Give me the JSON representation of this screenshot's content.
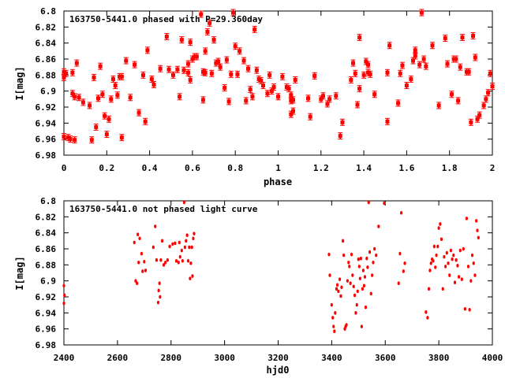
{
  "chart_data": [
    {
      "type": "scatter",
      "title": "163750-5441.0 phased with P=29.360day",
      "xlabel": "phase",
      "ylabel": "I[mag]",
      "xlim": [
        0,
        2
      ],
      "ylim": [
        6.98,
        6.8
      ],
      "y_inverted": true,
      "x_ticks": [
        0,
        0.2,
        0.4,
        0.6,
        0.8,
        1,
        1.2,
        1.4,
        1.6,
        1.8,
        2
      ],
      "x_tick_labels": [
        "0",
        "0.2",
        "0.4",
        "0.6",
        "0.8",
        "1",
        "1.2",
        "1.4",
        "1.6",
        "1.8",
        "2"
      ],
      "y_ticks": [
        6.8,
        6.82,
        6.84,
        6.86,
        6.88,
        6.9,
        6.92,
        6.94,
        6.96,
        6.98
      ],
      "y_tick_labels": [
        "6.8",
        "6.82",
        "6.84",
        "6.86",
        "6.88",
        "6.9",
        "6.92",
        "6.94",
        "6.96",
        "6.98"
      ],
      "grid": false,
      "marker_color": "#ff0000",
      "marker": "errorbar-dot",
      "points": [
        [
          0.0,
          6.876
        ],
        [
          0.0,
          6.883
        ],
        [
          0.0,
          6.957
        ],
        [
          0.01,
          6.878
        ],
        [
          0.02,
          6.958
        ],
        [
          0.03,
          6.96
        ],
        [
          0.04,
          6.877
        ],
        [
          0.04,
          6.903
        ],
        [
          0.05,
          6.961
        ],
        [
          0.05,
          6.907
        ],
        [
          0.06,
          6.865
        ],
        [
          0.07,
          6.908
        ],
        [
          0.09,
          6.914
        ],
        [
          0.12,
          6.918
        ],
        [
          0.13,
          6.961
        ],
        [
          0.14,
          6.883
        ],
        [
          0.15,
          6.945
        ],
        [
          0.16,
          6.909
        ],
        [
          0.17,
          6.869
        ],
        [
          0.18,
          6.904
        ],
        [
          0.19,
          6.931
        ],
        [
          0.2,
          6.954
        ],
        [
          0.21,
          6.935
        ],
        [
          0.22,
          6.91
        ],
        [
          0.23,
          6.885
        ],
        [
          0.24,
          6.893
        ],
        [
          0.25,
          6.905
        ],
        [
          0.26,
          6.882
        ],
        [
          0.27,
          6.958
        ],
        [
          0.27,
          6.882
        ],
        [
          0.29,
          6.862
        ],
        [
          0.31,
          6.908
        ],
        [
          0.33,
          6.867
        ],
        [
          0.35,
          6.927
        ],
        [
          0.37,
          6.88
        ],
        [
          0.38,
          6.938
        ],
        [
          0.39,
          6.849
        ],
        [
          0.41,
          6.885
        ],
        [
          0.42,
          6.892
        ],
        [
          0.45,
          6.872
        ],
        [
          0.48,
          6.832
        ],
        [
          0.49,
          6.873
        ],
        [
          0.51,
          6.88
        ],
        [
          0.53,
          6.873
        ],
        [
          0.54,
          6.907
        ],
        [
          0.55,
          6.836
        ],
        [
          0.56,
          6.874
        ],
        [
          0.58,
          6.877
        ],
        [
          0.58,
          6.866
        ],
        [
          0.59,
          6.886
        ],
        [
          0.59,
          6.839
        ],
        [
          0.6,
          6.86
        ],
        [
          0.61,
          6.857
        ],
        [
          0.62,
          6.857
        ],
        [
          0.64,
          6.804
        ],
        [
          0.65,
          6.911
        ],
        [
          0.65,
          6.876
        ],
        [
          0.66,
          6.85
        ],
        [
          0.66,
          6.877
        ],
        [
          0.67,
          6.826
        ],
        [
          0.68,
          6.815
        ],
        [
          0.69,
          6.878
        ],
        [
          0.7,
          6.836
        ],
        [
          0.71,
          6.865
        ],
        [
          0.72,
          6.863
        ],
        [
          0.73,
          6.87
        ],
        [
          0.75,
          6.896
        ],
        [
          0.76,
          6.861
        ],
        [
          0.77,
          6.913
        ],
        [
          0.78,
          6.879
        ],
        [
          0.79,
          6.802
        ],
        [
          0.8,
          6.844
        ],
        [
          0.81,
          6.879
        ],
        [
          0.82,
          6.85
        ],
        [
          0.84,
          6.862
        ],
        [
          0.85,
          6.912
        ],
        [
          0.86,
          6.872
        ],
        [
          0.87,
          6.898
        ],
        [
          0.88,
          6.907
        ],
        [
          0.89,
          6.823
        ],
        [
          0.9,
          6.874
        ],
        [
          0.91,
          6.885
        ],
        [
          0.92,
          6.887
        ],
        [
          0.93,
          6.893
        ],
        [
          0.95,
          6.903
        ],
        [
          0.96,
          6.88
        ],
        [
          0.97,
          6.9
        ],
        [
          0.98,
          6.895
        ],
        [
          1.0,
          6.907
        ],
        [
          1.02,
          6.882
        ],
        [
          1.04,
          6.895
        ],
        [
          1.05,
          6.897
        ],
        [
          1.06,
          6.905
        ],
        [
          1.06,
          6.912
        ],
        [
          1.06,
          6.929
        ],
        [
          1.07,
          6.925
        ],
        [
          1.07,
          6.911
        ],
        [
          1.08,
          6.886
        ],
        [
          1.14,
          6.909
        ],
        [
          1.15,
          6.932
        ],
        [
          1.17,
          6.881
        ],
        [
          1.2,
          6.91
        ],
        [
          1.21,
          6.906
        ],
        [
          1.23,
          6.916
        ],
        [
          1.24,
          6.91
        ],
        [
          1.27,
          6.906
        ],
        [
          1.29,
          6.956
        ],
        [
          1.3,
          6.939
        ],
        [
          1.34,
          6.886
        ],
        [
          1.35,
          6.865
        ],
        [
          1.36,
          6.878
        ],
        [
          1.37,
          6.917
        ],
        [
          1.38,
          6.833
        ],
        [
          1.38,
          6.897
        ],
        [
          1.4,
          6.88
        ],
        [
          1.41,
          6.863
        ],
        [
          1.42,
          6.877
        ],
        [
          1.42,
          6.867
        ],
        [
          1.43,
          6.879
        ],
        [
          1.45,
          6.904
        ],
        [
          1.51,
          6.877
        ],
        [
          1.51,
          6.938
        ],
        [
          1.52,
          6.843
        ],
        [
          1.56,
          6.915
        ],
        [
          1.57,
          6.878
        ],
        [
          1.58,
          6.868
        ],
        [
          1.6,
          6.893
        ],
        [
          1.62,
          6.885
        ],
        [
          1.63,
          6.862
        ],
        [
          1.64,
          6.849
        ],
        [
          1.64,
          6.856
        ],
        [
          1.66,
          6.867
        ],
        [
          1.67,
          6.802
        ],
        [
          1.68,
          6.86
        ],
        [
          1.69,
          6.869
        ],
        [
          1.72,
          6.843
        ],
        [
          1.75,
          6.918
        ],
        [
          1.78,
          6.834
        ],
        [
          1.79,
          6.866
        ],
        [
          1.81,
          6.904
        ],
        [
          1.82,
          6.86
        ],
        [
          1.83,
          6.86
        ],
        [
          1.84,
          6.912
        ],
        [
          1.85,
          6.87
        ],
        [
          1.86,
          6.833
        ],
        [
          1.88,
          6.876
        ],
        [
          1.89,
          6.876
        ],
        [
          1.9,
          6.939
        ],
        [
          1.91,
          6.831
        ],
        [
          1.92,
          6.858
        ],
        [
          1.93,
          6.935
        ],
        [
          1.94,
          6.93
        ],
        [
          1.96,
          6.918
        ],
        [
          1.97,
          6.91
        ],
        [
          1.98,
          6.902
        ],
        [
          1.99,
          6.878
        ],
        [
          2.0,
          6.894
        ]
      ]
    },
    {
      "type": "scatter",
      "title": "163750-5441.0 not phased light curve",
      "xlabel": "hjd0",
      "ylabel": "I[mag]",
      "xlim": [
        2400,
        4000
      ],
      "ylim": [
        6.98,
        6.8
      ],
      "y_inverted": true,
      "x_ticks": [
        2400,
        2600,
        2800,
        3000,
        3200,
        3400,
        3600,
        3800,
        4000
      ],
      "x_tick_labels": [
        "2400",
        "2600",
        "2800",
        "3000",
        "3200",
        "3400",
        "3600",
        "3800",
        "4000"
      ],
      "y_ticks": [
        6.8,
        6.82,
        6.84,
        6.86,
        6.88,
        6.9,
        6.92,
        6.94,
        6.96,
        6.98
      ],
      "y_tick_labels": [
        "6.8",
        "6.82",
        "6.84",
        "6.86",
        "6.88",
        "6.9",
        "6.92",
        "6.94",
        "6.96",
        "6.98"
      ],
      "grid": false,
      "marker_color": "#ff0000",
      "marker": "dot",
      "points": [
        [
          2400,
          6.906
        ],
        [
          2400,
          6.928
        ],
        [
          2402,
          6.918
        ],
        [
          2663,
          6.852
        ],
        [
          2668,
          6.9
        ],
        [
          2673,
          6.903
        ],
        [
          2676,
          6.842
        ],
        [
          2679,
          6.877
        ],
        [
          2683,
          6.847
        ],
        [
          2690,
          6.866
        ],
        [
          2694,
          6.888
        ],
        [
          2700,
          6.876
        ],
        [
          2705,
          6.887
        ],
        [
          2734,
          6.858
        ],
        [
          2741,
          6.832
        ],
        [
          2746,
          6.874
        ],
        [
          2752,
          6.927
        ],
        [
          2754,
          6.912
        ],
        [
          2757,
          6.903
        ],
        [
          2759,
          6.92
        ],
        [
          2762,
          6.874
        ],
        [
          2767,
          6.85
        ],
        [
          2773,
          6.88
        ],
        [
          2779,
          6.877
        ],
        [
          2787,
          6.874
        ],
        [
          2795,
          6.857
        ],
        [
          2806,
          6.854
        ],
        [
          2815,
          6.853
        ],
        [
          2820,
          6.875
        ],
        [
          2828,
          6.877
        ],
        [
          2831,
          6.852
        ],
        [
          2834,
          6.87
        ],
        [
          2840,
          6.862
        ],
        [
          2843,
          6.875
        ],
        [
          2849,
          6.802
        ],
        [
          2852,
          6.858
        ],
        [
          2856,
          6.85
        ],
        [
          2860,
          6.843
        ],
        [
          2864,
          6.875
        ],
        [
          2868,
          6.858
        ],
        [
          2871,
          6.897
        ],
        [
          2874,
          6.878
        ],
        [
          2878,
          6.858
        ],
        [
          2880,
          6.894
        ],
        [
          2883,
          6.847
        ],
        [
          2886,
          6.841
        ],
        [
          3390,
          6.867
        ],
        [
          3393,
          6.893
        ],
        [
          3400,
          6.93
        ],
        [
          3404,
          6.946
        ],
        [
          3407,
          6.957
        ],
        [
          3410,
          6.963
        ],
        [
          3413,
          6.94
        ],
        [
          3418,
          6.91
        ],
        [
          3421,
          6.905
        ],
        [
          3425,
          6.913
        ],
        [
          3430,
          6.898
        ],
        [
          3434,
          6.919
        ],
        [
          3437,
          6.908
        ],
        [
          3442,
          6.85
        ],
        [
          3445,
          6.868
        ],
        [
          3449,
          6.96
        ],
        [
          3452,
          6.957
        ],
        [
          3455,
          6.955
        ],
        [
          3459,
          6.9
        ],
        [
          3463,
          6.877
        ],
        [
          3466,
          6.882
        ],
        [
          3470,
          6.903
        ],
        [
          3474,
          6.867
        ],
        [
          3478,
          6.893
        ],
        [
          3482,
          6.907
        ],
        [
          3486,
          6.918
        ],
        [
          3490,
          6.94
        ],
        [
          3494,
          6.93
        ],
        [
          3497,
          6.913
        ],
        [
          3500,
          6.873
        ],
        [
          3503,
          6.882
        ],
        [
          3506,
          6.897
        ],
        [
          3509,
          6.872
        ],
        [
          3512,
          6.957
        ],
        [
          3515,
          6.91
        ],
        [
          3518,
          6.887
        ],
        [
          3521,
          6.906
        ],
        [
          3524,
          6.895
        ],
        [
          3527,
          6.933
        ],
        [
          3531,
          6.872
        ],
        [
          3534,
          6.883
        ],
        [
          3538,
          6.802
        ],
        [
          3542,
          6.864
        ],
        [
          3547,
          6.916
        ],
        [
          3551,
          6.893
        ],
        [
          3555,
          6.877
        ],
        [
          3560,
          6.86
        ],
        [
          3566,
          6.868
        ],
        [
          3575,
          6.832
        ],
        [
          3596,
          6.803
        ],
        [
          3650,
          6.903
        ],
        [
          3655,
          6.866
        ],
        [
          3660,
          6.815
        ],
        [
          3668,
          6.888
        ],
        [
          3673,
          6.878
        ],
        [
          3752,
          6.939
        ],
        [
          3758,
          6.946
        ],
        [
          3763,
          6.91
        ],
        [
          3767,
          6.887
        ],
        [
          3771,
          6.878
        ],
        [
          3775,
          6.873
        ],
        [
          3779,
          6.875
        ],
        [
          3783,
          6.857
        ],
        [
          3787,
          6.883
        ],
        [
          3791,
          6.868
        ],
        [
          3796,
          6.857
        ],
        [
          3800,
          6.834
        ],
        [
          3805,
          6.829
        ],
        [
          3810,
          6.848
        ],
        [
          3815,
          6.91
        ],
        [
          3820,
          6.87
        ],
        [
          3825,
          6.882
        ],
        [
          3830,
          6.865
        ],
        [
          3835,
          6.878
        ],
        [
          3840,
          6.893
        ],
        [
          3845,
          6.862
        ],
        [
          3850,
          6.873
        ],
        [
          3855,
          6.868
        ],
        [
          3860,
          6.902
        ],
        [
          3865,
          6.874
        ],
        [
          3870,
          6.881
        ],
        [
          3875,
          6.895
        ],
        [
          3880,
          6.862
        ],
        [
          3886,
          6.898
        ],
        [
          3892,
          6.86
        ],
        [
          3898,
          6.935
        ],
        [
          3904,
          6.822
        ],
        [
          3910,
          6.882
        ],
        [
          3915,
          6.936
        ],
        [
          3920,
          6.9
        ],
        [
          3925,
          6.868
        ],
        [
          3930,
          6.878
        ],
        [
          3935,
          6.893
        ],
        [
          3940,
          6.825
        ],
        [
          3944,
          6.837
        ],
        [
          3948,
          6.846
        ]
      ]
    }
  ]
}
